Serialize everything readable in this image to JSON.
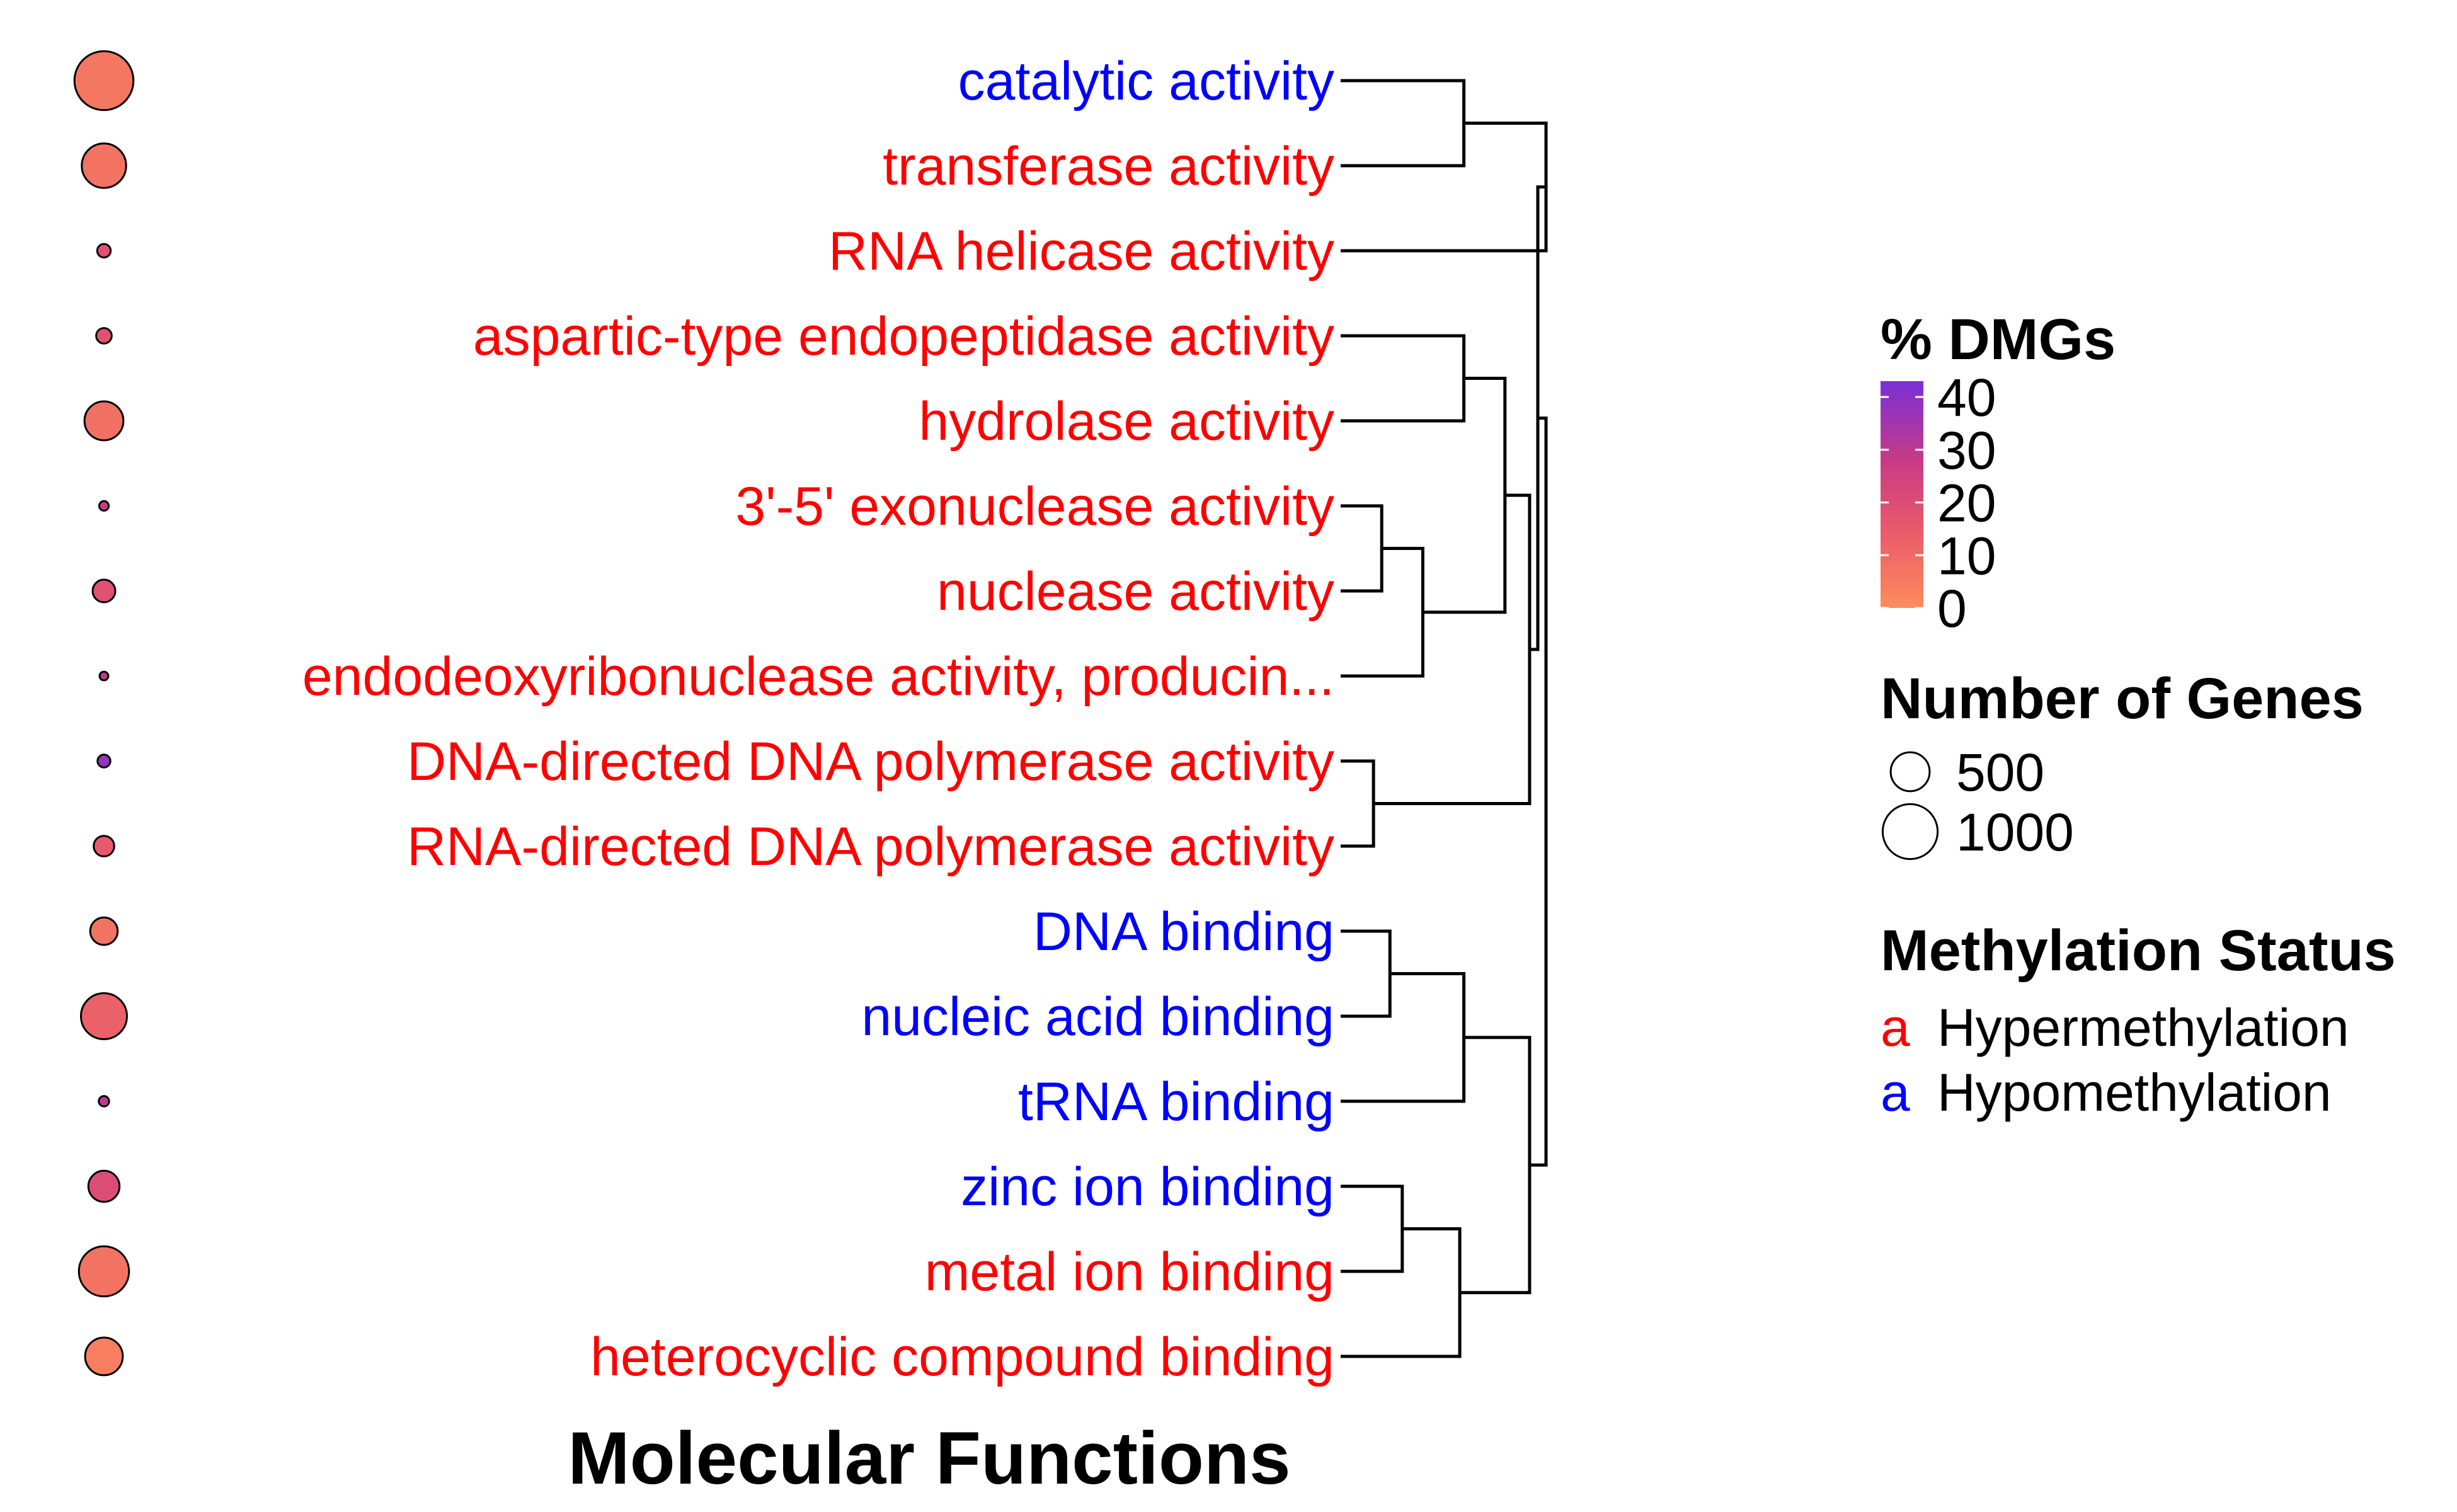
{
  "chart_data": {
    "type": "dendrogram-dot",
    "title": "Molecular Functions",
    "terms": [
      {
        "label": "catalytic activity",
        "status": "Hypomethylation",
        "genes": 1150,
        "pct_dmgs": 6
      },
      {
        "label": "transferase activity",
        "status": "Hypermethylation",
        "genes": 650,
        "pct_dmgs": 7
      },
      {
        "label": "RNA helicase activity",
        "status": "Hypermethylation",
        "genes": 60,
        "pct_dmgs": 18
      },
      {
        "label": "aspartic-type endopeptidase activity",
        "status": "Hypermethylation",
        "genes": 80,
        "pct_dmgs": 17
      },
      {
        "label": "hydrolase activity",
        "status": "Hypermethylation",
        "genes": 500,
        "pct_dmgs": 8
      },
      {
        "label": "3'-5' exonuclease activity",
        "status": "Hypermethylation",
        "genes": 30,
        "pct_dmgs": 28
      },
      {
        "label": "nuclease activity",
        "status": "Hypermethylation",
        "genes": 170,
        "pct_dmgs": 18
      },
      {
        "label": "endodeoxyribonuclease activity, producin...",
        "status": "Hypermethylation",
        "genes": 25,
        "pct_dmgs": 30
      },
      {
        "label": "DNA-directed DNA polymerase activity",
        "status": "Hypermethylation",
        "genes": 55,
        "pct_dmgs": 38
      },
      {
        "label": "RNA-directed DNA polymerase activity",
        "status": "Hypermethylation",
        "genes": 140,
        "pct_dmgs": 14
      },
      {
        "label": "DNA binding",
        "status": "Hypomethylation",
        "genes": 250,
        "pct_dmgs": 7
      },
      {
        "label": "nucleic acid binding",
        "status": "Hypomethylation",
        "genes": 700,
        "pct_dmgs": 12
      },
      {
        "label": "tRNA binding",
        "status": "Hypomethylation",
        "genes": 35,
        "pct_dmgs": 30
      },
      {
        "label": "zinc ion binding",
        "status": "Hypomethylation",
        "genes": 320,
        "pct_dmgs": 20
      },
      {
        "label": "metal ion binding",
        "status": "Hypermethylation",
        "genes": 830,
        "pct_dmgs": 7
      },
      {
        "label": "heterocyclic compound binding",
        "status": "Hypermethylation",
        "genes": 470,
        "pct_dmgs": 4
      }
    ],
    "dendrogram_merges": [
      [
        0,
        1,
        0.3
      ],
      [
        -1,
        2,
        0.5
      ],
      [
        3,
        4,
        0.3
      ],
      [
        5,
        6,
        0.1
      ],
      [
        -4,
        7,
        0.2
      ],
      [
        -3,
        -5,
        0.4
      ],
      [
        8,
        9,
        0.08
      ],
      [
        -6,
        -7,
        0.46
      ],
      [
        -2,
        -8,
        0.48
      ],
      [
        10,
        11,
        0.12
      ],
      [
        -10,
        12,
        0.3
      ],
      [
        13,
        14,
        0.15
      ],
      [
        -12,
        15,
        0.29
      ],
      [
        -11,
        -13,
        0.46
      ],
      [
        -9,
        -14,
        0.5
      ]
    ],
    "legend": {
      "color": {
        "title": "% DMGs",
        "ticks": [
          40,
          30,
          20,
          10,
          0
        ],
        "range": [
          0,
          43
        ],
        "colors": [
          "#fd8c5c",
          "#e8596b",
          "#c73b86",
          "#7a2fd6"
        ]
      },
      "size": {
        "title": "Number of Genes",
        "entries": [
          {
            "label": "500",
            "value": 500
          },
          {
            "label": "1000",
            "value": 1000
          }
        ]
      },
      "status": {
        "title": "Methylation Status",
        "entries": [
          {
            "key": "a",
            "label": "Hypermethylation",
            "color": "#ff0000"
          },
          {
            "key": "a",
            "label": "Hypomethylation",
            "color": "#0000ff"
          }
        ]
      }
    }
  }
}
